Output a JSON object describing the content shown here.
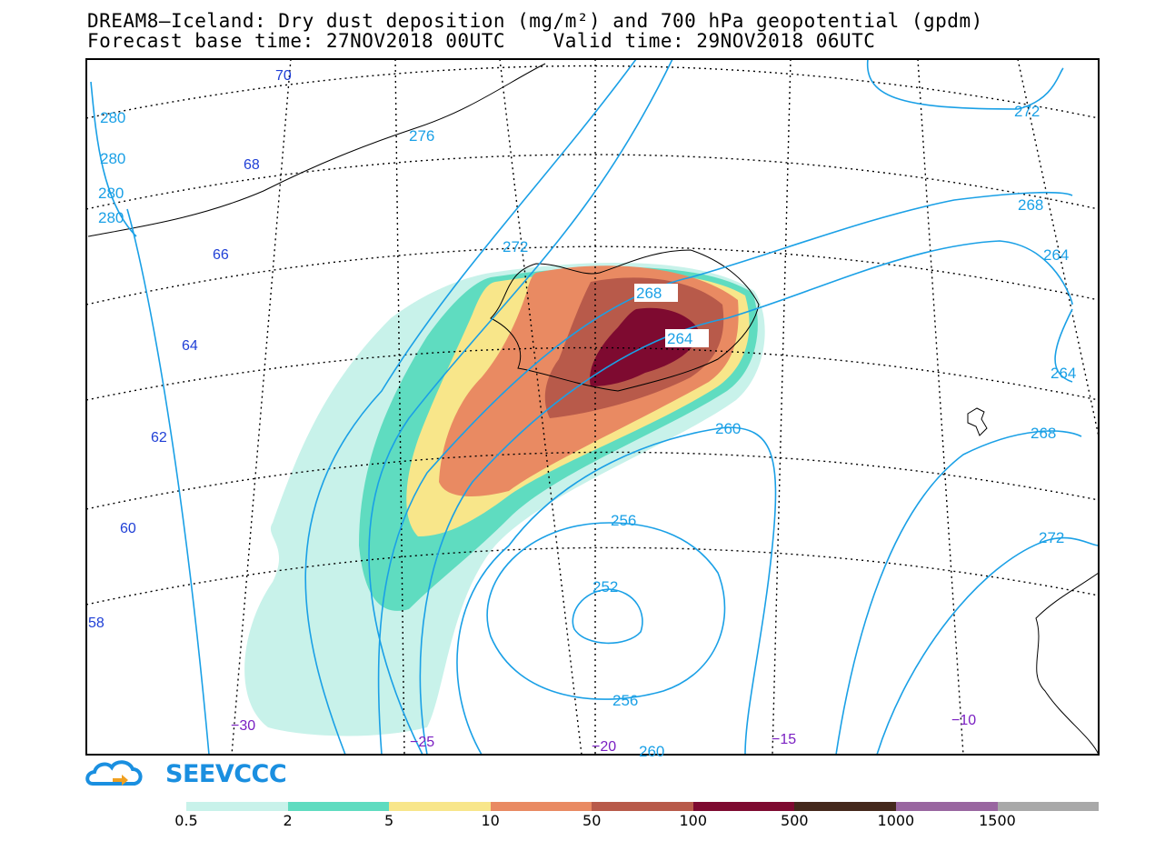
{
  "title_line1": "DREAM8–Iceland: Dry dust deposition (mg/m²) and 700 hPa geopotential (gpdm)",
  "title_line2": "Forecast base time: 27NOV2018 00UTC    Valid time: 29NOV2018 06UTC",
  "logo_text": "SEEVCCC",
  "colors": {
    "lines": "#1aa0e6",
    "lat_labels": "#1f3fd6",
    "lon_labels": "#7a1fc2"
  },
  "legend": {
    "bins": [
      {
        "color": "#c8f2ea"
      },
      {
        "color": "#5fdcc0"
      },
      {
        "color": "#f8e68a"
      },
      {
        "color": "#e98a62"
      },
      {
        "color": "#b85a4a"
      },
      {
        "color": "#7e0a30"
      },
      {
        "color": "#44281c"
      },
      {
        "color": "#9966a0"
      },
      {
        "color": "#a9a9a9"
      }
    ],
    "labels": [
      "0.5",
      "2",
      "5",
      "10",
      "50",
      "100",
      "500",
      "1000",
      "1500"
    ]
  },
  "lat_labels": [
    "70",
    "68",
    "66",
    "64",
    "62",
    "60",
    "58"
  ],
  "lon_labels": [
    "−30",
    "−25",
    "−20",
    "−15",
    "−10"
  ],
  "contour_labels": [
    "280",
    "280",
    "280",
    "280",
    "276",
    "272",
    "272",
    "268",
    "268",
    "264",
    "264",
    "264",
    "268",
    "260",
    "256",
    "252",
    "256",
    "260",
    "272"
  ]
}
